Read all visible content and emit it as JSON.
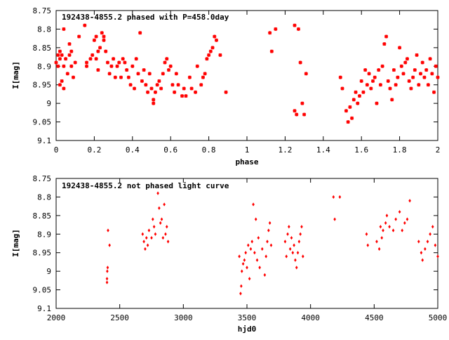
{
  "chart_data": [
    {
      "type": "scatter",
      "title": "192438-4855.2 phased with P=458.0day",
      "xlabel": "phase",
      "ylabel": "I[mag]",
      "xlim": [
        0,
        2
      ],
      "ylim": [
        9.1,
        8.75
      ],
      "y_inverted": true,
      "xticks": [
        "0",
        "0.2",
        "0.4",
        "0.6",
        "0.8",
        "1",
        "1.2",
        "1.4",
        "1.6",
        "1.8",
        "2"
      ],
      "yticks": [
        "8.75",
        "8.8",
        "8.85",
        "8.9",
        "8.95",
        "9",
        "9.05",
        "9.1"
      ],
      "grid": false,
      "marker_color": "#ff0000",
      "series": [
        {
          "points": [
            [
              0.0,
              8.89
            ],
            [
              0.01,
              8.87
            ],
            [
              0.01,
              8.9
            ],
            [
              0.02,
              8.86
            ],
            [
              0.02,
              8.95
            ],
            [
              0.02,
              8.88
            ],
            [
              0.03,
              8.94
            ],
            [
              0.03,
              8.87
            ],
            [
              0.04,
              8.9
            ],
            [
              0.04,
              8.96
            ],
            [
              0.04,
              8.8
            ],
            [
              0.05,
              8.88
            ],
            [
              0.06,
              8.92
            ],
            [
              0.07,
              8.84
            ],
            [
              0.07,
              8.87
            ],
            [
              0.08,
              8.86
            ],
            [
              0.08,
              8.9
            ],
            [
              0.09,
              8.93
            ],
            [
              0.1,
              8.89
            ],
            [
              0.12,
              8.82
            ],
            [
              0.15,
              8.79
            ],
            [
              0.16,
              8.9
            ],
            [
              0.16,
              8.89
            ],
            [
              0.18,
              8.88
            ],
            [
              0.19,
              8.87
            ],
            [
              0.2,
              8.83
            ],
            [
              0.21,
              8.82
            ],
            [
              0.21,
              8.88
            ],
            [
              0.22,
              8.86
            ],
            [
              0.22,
              8.91
            ],
            [
              0.23,
              8.85
            ],
            [
              0.24,
              8.81
            ],
            [
              0.25,
              8.83
            ],
            [
              0.25,
              8.82
            ],
            [
              0.26,
              8.86
            ],
            [
              0.27,
              8.89
            ],
            [
              0.28,
              8.92
            ],
            [
              0.29,
              8.9
            ],
            [
              0.3,
              8.88
            ],
            [
              0.31,
              8.93
            ],
            [
              0.32,
              8.9
            ],
            [
              0.33,
              8.89
            ],
            [
              0.34,
              8.93
            ],
            [
              0.35,
              8.88
            ],
            [
              0.36,
              8.89
            ],
            [
              0.37,
              8.91
            ],
            [
              0.38,
              8.93
            ],
            [
              0.39,
              8.95
            ],
            [
              0.4,
              8.9
            ],
            [
              0.41,
              8.96
            ],
            [
              0.42,
              8.88
            ],
            [
              0.43,
              8.92
            ],
            [
              0.44,
              8.81
            ],
            [
              0.45,
              8.94
            ],
            [
              0.46,
              8.91
            ],
            [
              0.47,
              8.95
            ],
            [
              0.48,
              8.97
            ],
            [
              0.49,
              8.92
            ],
            [
              0.5,
              8.96
            ],
            [
              0.51,
              8.99
            ],
            [
              0.51,
              9.0
            ],
            [
              0.52,
              8.97
            ],
            [
              0.53,
              8.95
            ],
            [
              0.54,
              8.94
            ],
            [
              0.55,
              8.96
            ],
            [
              0.56,
              8.92
            ],
            [
              0.57,
              8.89
            ],
            [
              0.58,
              8.88
            ],
            [
              0.59,
              8.91
            ],
            [
              0.6,
              8.9
            ],
            [
              0.61,
              8.95
            ],
            [
              0.62,
              8.97
            ],
            [
              0.63,
              8.92
            ],
            [
              0.64,
              8.95
            ],
            [
              0.66,
              8.98
            ],
            [
              0.67,
              8.96
            ],
            [
              0.68,
              8.98
            ],
            [
              0.7,
              8.93
            ],
            [
              0.71,
              8.96
            ],
            [
              0.73,
              8.97
            ],
            [
              0.74,
              8.9
            ],
            [
              0.76,
              8.95
            ],
            [
              0.77,
              8.93
            ],
            [
              0.78,
              8.92
            ],
            [
              0.79,
              8.88
            ],
            [
              0.8,
              8.87
            ],
            [
              0.81,
              8.86
            ],
            [
              0.82,
              8.85
            ],
            [
              0.83,
              8.82
            ],
            [
              0.84,
              8.83
            ],
            [
              0.86,
              8.87
            ],
            [
              0.89,
              8.97
            ],
            [
              1.12,
              8.81
            ],
            [
              1.13,
              8.86
            ],
            [
              1.15,
              8.8
            ],
            [
              1.25,
              8.79
            ],
            [
              1.25,
              9.02
            ],
            [
              1.26,
              9.03
            ],
            [
              1.27,
              8.8
            ],
            [
              1.28,
              8.89
            ],
            [
              1.29,
              9.0
            ],
            [
              1.3,
              9.03
            ],
            [
              1.31,
              8.92
            ],
            [
              1.49,
              8.93
            ],
            [
              1.5,
              8.96
            ],
            [
              1.52,
              9.02
            ],
            [
              1.53,
              9.05
            ],
            [
              1.54,
              9.01
            ],
            [
              1.55,
              9.04
            ],
            [
              1.56,
              8.99
            ],
            [
              1.57,
              8.97
            ],
            [
              1.58,
              9.0
            ],
            [
              1.59,
              8.98
            ],
            [
              1.6,
              8.94
            ],
            [
              1.61,
              8.97
            ],
            [
              1.62,
              8.91
            ],
            [
              1.63,
              8.95
            ],
            [
              1.64,
              8.92
            ],
            [
              1.65,
              8.96
            ],
            [
              1.66,
              8.94
            ],
            [
              1.67,
              8.93
            ],
            [
              1.68,
              9.0
            ],
            [
              1.69,
              8.91
            ],
            [
              1.7,
              8.95
            ],
            [
              1.71,
              8.9
            ],
            [
              1.72,
              8.84
            ],
            [
              1.73,
              8.82
            ],
            [
              1.74,
              8.94
            ],
            [
              1.75,
              8.96
            ],
            [
              1.76,
              8.99
            ],
            [
              1.77,
              8.91
            ],
            [
              1.78,
              8.95
            ],
            [
              1.79,
              8.93
            ],
            [
              1.8,
              8.85
            ],
            [
              1.81,
              8.9
            ],
            [
              1.82,
              8.92
            ],
            [
              1.83,
              8.89
            ],
            [
              1.84,
              8.88
            ],
            [
              1.85,
              8.94
            ],
            [
              1.86,
              8.96
            ],
            [
              1.87,
              8.93
            ],
            [
              1.88,
              8.91
            ],
            [
              1.89,
              8.87
            ],
            [
              1.9,
              8.95
            ],
            [
              1.91,
              8.92
            ],
            [
              1.92,
              8.89
            ],
            [
              1.93,
              8.93
            ],
            [
              1.94,
              8.91
            ],
            [
              1.95,
              8.95
            ],
            [
              1.96,
              8.88
            ],
            [
              1.97,
              8.92
            ],
            [
              1.98,
              8.97
            ],
            [
              1.99,
              8.9
            ],
            [
              2.0,
              8.93
            ]
          ]
        }
      ]
    },
    {
      "type": "scatter",
      "title": "192438-4855.2 not phased light curve",
      "xlabel": "hjd0",
      "ylabel": "I[mag]",
      "xlim": [
        2000,
        5000
      ],
      "ylim": [
        9.1,
        8.75
      ],
      "y_inverted": true,
      "xticks": [
        "2000",
        "2500",
        "3000",
        "3500",
        "4000",
        "4500",
        "5000"
      ],
      "yticks": [
        "8.75",
        "8.8",
        "8.85",
        "8.9",
        "8.95",
        "9",
        "9.05",
        "9.1"
      ],
      "grid": false,
      "marker_color": "#ff0000",
      "series": [
        {
          "points": [
            [
              2400,
              9.03
            ],
            [
              2400,
              9.02
            ],
            [
              2402,
              9.0
            ],
            [
              2405,
              8.99
            ],
            [
              2408,
              8.89
            ],
            [
              2420,
              8.93
            ],
            [
              2680,
              8.9
            ],
            [
              2690,
              8.92
            ],
            [
              2700,
              8.94
            ],
            [
              2710,
              8.91
            ],
            [
              2720,
              8.93
            ],
            [
              2730,
              8.89
            ],
            [
              2750,
              8.91
            ],
            [
              2760,
              8.86
            ],
            [
              2770,
              8.88
            ],
            [
              2780,
              8.9
            ],
            [
              2800,
              8.79
            ],
            [
              2810,
              8.83
            ],
            [
              2820,
              8.87
            ],
            [
              2830,
              8.86
            ],
            [
              2840,
              8.91
            ],
            [
              2850,
              8.82
            ],
            [
              2860,
              8.9
            ],
            [
              2870,
              8.88
            ],
            [
              2880,
              8.92
            ],
            [
              3440,
              8.96
            ],
            [
              3450,
              9.06
            ],
            [
              3455,
              9.04
            ],
            [
              3460,
              9.0
            ],
            [
              3470,
              8.98
            ],
            [
              3480,
              8.97
            ],
            [
              3490,
              8.95
            ],
            [
              3500,
              8.99
            ],
            [
              3510,
              8.93
            ],
            [
              3520,
              9.02
            ],
            [
              3530,
              8.94
            ],
            [
              3540,
              8.92
            ],
            [
              3550,
              8.82
            ],
            [
              3560,
              8.95
            ],
            [
              3570,
              8.86
            ],
            [
              3580,
              8.97
            ],
            [
              3590,
              8.91
            ],
            [
              3600,
              8.99
            ],
            [
              3620,
              8.94
            ],
            [
              3640,
              9.01
            ],
            [
              3650,
              8.96
            ],
            [
              3660,
              8.92
            ],
            [
              3670,
              8.89
            ],
            [
              3680,
              8.87
            ],
            [
              3690,
              8.93
            ],
            [
              3800,
              8.92
            ],
            [
              3810,
              8.96
            ],
            [
              3820,
              8.9
            ],
            [
              3830,
              8.88
            ],
            [
              3840,
              8.94
            ],
            [
              3850,
              8.91
            ],
            [
              3860,
              8.95
            ],
            [
              3870,
              8.93
            ],
            [
              3880,
              8.97
            ],
            [
              3890,
              8.99
            ],
            [
              3900,
              8.95
            ],
            [
              3910,
              8.92
            ],
            [
              3920,
              8.9
            ],
            [
              3930,
              8.88
            ],
            [
              3940,
              8.96
            ],
            [
              4180,
              8.8
            ],
            [
              4190,
              8.86
            ],
            [
              4230,
              8.8
            ],
            [
              4440,
              8.9
            ],
            [
              4450,
              8.93
            ],
            [
              4520,
              8.92
            ],
            [
              4540,
              8.94
            ],
            [
              4550,
              8.88
            ],
            [
              4560,
              8.91
            ],
            [
              4570,
              8.89
            ],
            [
              4590,
              8.87
            ],
            [
              4600,
              8.85
            ],
            [
              4620,
              8.88
            ],
            [
              4650,
              8.89
            ],
            [
              4670,
              8.86
            ],
            [
              4700,
              8.84
            ],
            [
              4720,
              8.89
            ],
            [
              4740,
              8.87
            ],
            [
              4760,
              8.86
            ],
            [
              4780,
              8.81
            ],
            [
              4850,
              8.92
            ],
            [
              4870,
              8.95
            ],
            [
              4880,
              8.97
            ],
            [
              4900,
              8.94
            ],
            [
              4920,
              8.92
            ],
            [
              4940,
              8.9
            ],
            [
              4960,
              8.88
            ],
            [
              4980,
              8.93
            ],
            [
              5000,
              8.96
            ]
          ]
        }
      ]
    }
  ]
}
